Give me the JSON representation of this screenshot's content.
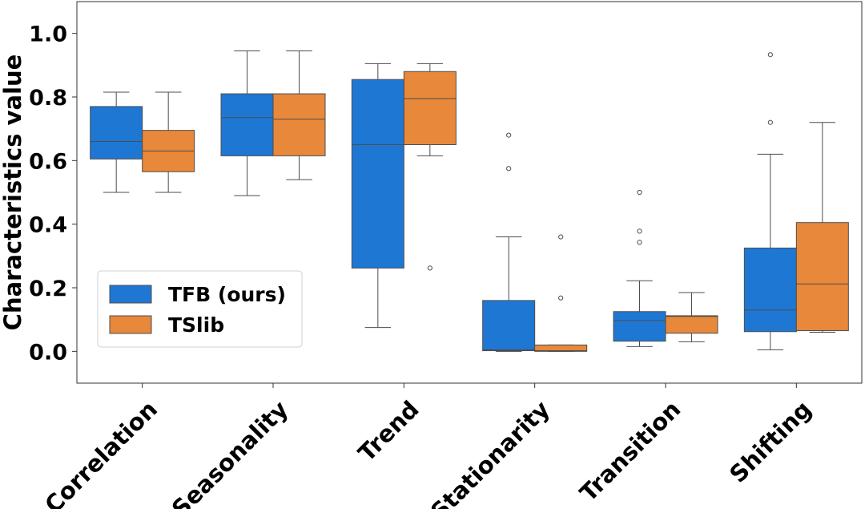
{
  "chart_data": {
    "type": "box",
    "title": "",
    "xlabel": "",
    "ylabel": "Characteristics value",
    "ylim": [
      -0.1,
      1.1
    ],
    "yticks": [
      0.0,
      0.2,
      0.4,
      0.6,
      0.8,
      1.0
    ],
    "ytick_labels": [
      "0.0",
      "0.2",
      "0.4",
      "0.6",
      "0.8",
      "1.0"
    ],
    "grid": false,
    "legend_position": "lower-left",
    "categories": [
      "Correlation",
      "Seasonality",
      "Trend",
      "Stationarity",
      "Transition",
      "Shifting"
    ],
    "series": [
      {
        "name": "TFB (ours)",
        "color": "#1f77d4",
        "boxes": [
          {
            "whisker_low": 0.5,
            "q1": 0.605,
            "median": 0.66,
            "q3": 0.77,
            "whisker_high": 0.815,
            "outliers": []
          },
          {
            "whisker_low": 0.49,
            "q1": 0.615,
            "median": 0.735,
            "q3": 0.81,
            "whisker_high": 0.945,
            "outliers": []
          },
          {
            "whisker_low": 0.075,
            "q1": 0.262,
            "median": 0.65,
            "q3": 0.855,
            "whisker_high": 0.905,
            "outliers": []
          },
          {
            "whisker_low": 0.0,
            "q1": 0.002,
            "median": 0.005,
            "q3": 0.16,
            "whisker_high": 0.36,
            "outliers": [
              0.575,
              0.68
            ]
          },
          {
            "whisker_low": 0.015,
            "q1": 0.032,
            "median": 0.097,
            "q3": 0.125,
            "whisker_high": 0.222,
            "outliers": [
              0.343,
              0.378,
              0.5
            ]
          },
          {
            "whisker_low": 0.005,
            "q1": 0.062,
            "median": 0.13,
            "q3": 0.325,
            "whisker_high": 0.62,
            "outliers": [
              0.72,
              0.933
            ]
          }
        ]
      },
      {
        "name": "TSlib",
        "color": "#e8883a",
        "boxes": [
          {
            "whisker_low": 0.5,
            "q1": 0.565,
            "median": 0.63,
            "q3": 0.695,
            "whisker_high": 0.815,
            "outliers": []
          },
          {
            "whisker_low": 0.54,
            "q1": 0.615,
            "median": 0.73,
            "q3": 0.81,
            "whisker_high": 0.945,
            "outliers": []
          },
          {
            "whisker_low": 0.615,
            "q1": 0.65,
            "median": 0.795,
            "q3": 0.88,
            "whisker_high": 0.905,
            "outliers": [
              0.262
            ]
          },
          {
            "whisker_low": 0.0,
            "q1": 0.0,
            "median": 0.002,
            "q3": 0.02,
            "whisker_high": 0.02,
            "outliers": [
              0.168,
              0.36
            ]
          },
          {
            "whisker_low": 0.03,
            "q1": 0.057,
            "median": 0.11,
            "q3": 0.112,
            "whisker_high": 0.185,
            "outliers": []
          },
          {
            "whisker_low": 0.06,
            "q1": 0.065,
            "median": 0.212,
            "q3": 0.405,
            "whisker_high": 0.72,
            "outliers": []
          }
        ]
      }
    ]
  }
}
